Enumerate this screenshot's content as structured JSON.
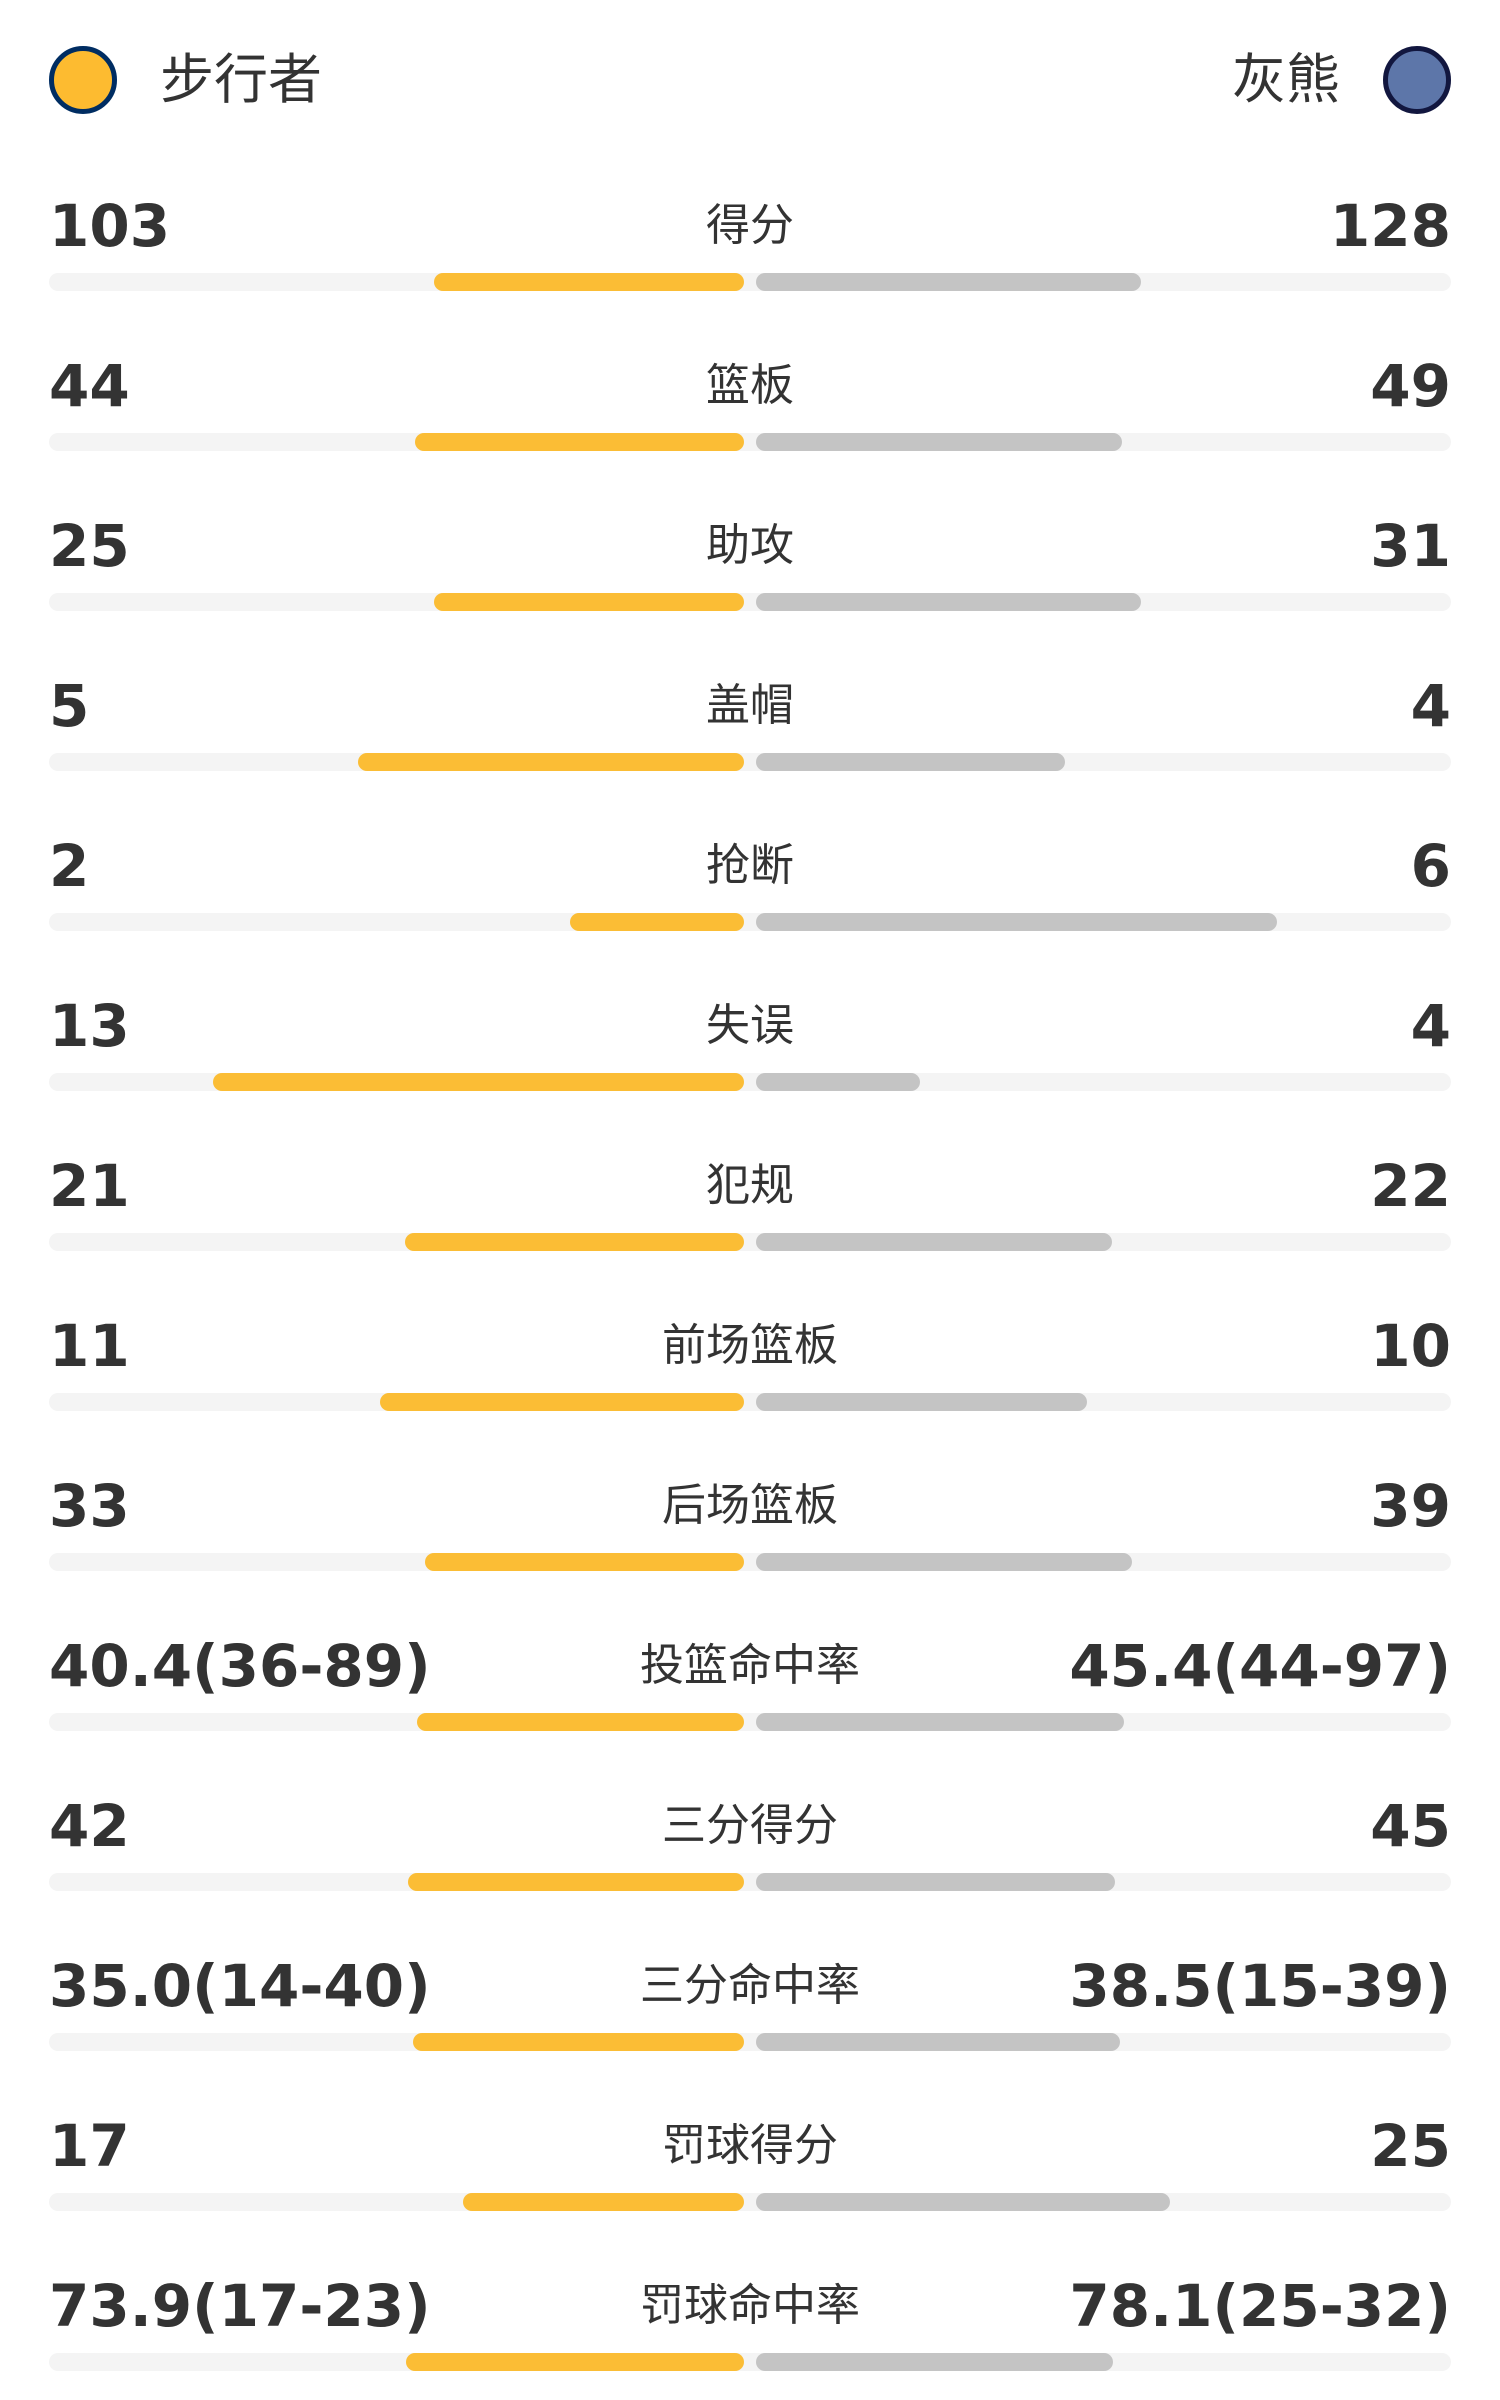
{
  "header": {
    "home_team": "步行者",
    "away_team": "灰熊"
  },
  "colors": {
    "home": "#fbbd35",
    "away": "#c4c4c4",
    "track": "#f4f4f4"
  },
  "stats": [
    {
      "label": "得分",
      "home": 103,
      "away": 128
    },
    {
      "label": "篮板",
      "home": 44,
      "away": 49
    },
    {
      "label": "助攻",
      "home": 25,
      "away": 31
    },
    {
      "label": "盖帽",
      "home": 5,
      "away": 4
    },
    {
      "label": "抢断",
      "home": 2,
      "away": 6
    },
    {
      "label": "失误",
      "home": 13,
      "away": 4
    },
    {
      "label": "犯规",
      "home": 21,
      "away": 22
    },
    {
      "label": "前场篮板",
      "home": 11,
      "away": 10
    },
    {
      "label": "后场篮板",
      "home": 33,
      "away": 39
    },
    {
      "label": "投篮命中率",
      "home": 40.4,
      "home_label": "40.4(36-89)",
      "away": 45.4,
      "away_label": "45.4(44-97)"
    },
    {
      "label": "三分得分",
      "home": 42,
      "away": 45
    },
    {
      "label": "三分命中率",
      "home": 35.0,
      "home_label": "35.0(14-40)",
      "away": 38.5,
      "away_label": "38.5(15-39)"
    },
    {
      "label": "罚球得分",
      "home": 17,
      "away": 25
    },
    {
      "label": "罚球命中率",
      "home": 73.9,
      "home_label": "73.9(17-23)",
      "away": 78.1,
      "away_label": "78.1(25-32)"
    }
  ]
}
